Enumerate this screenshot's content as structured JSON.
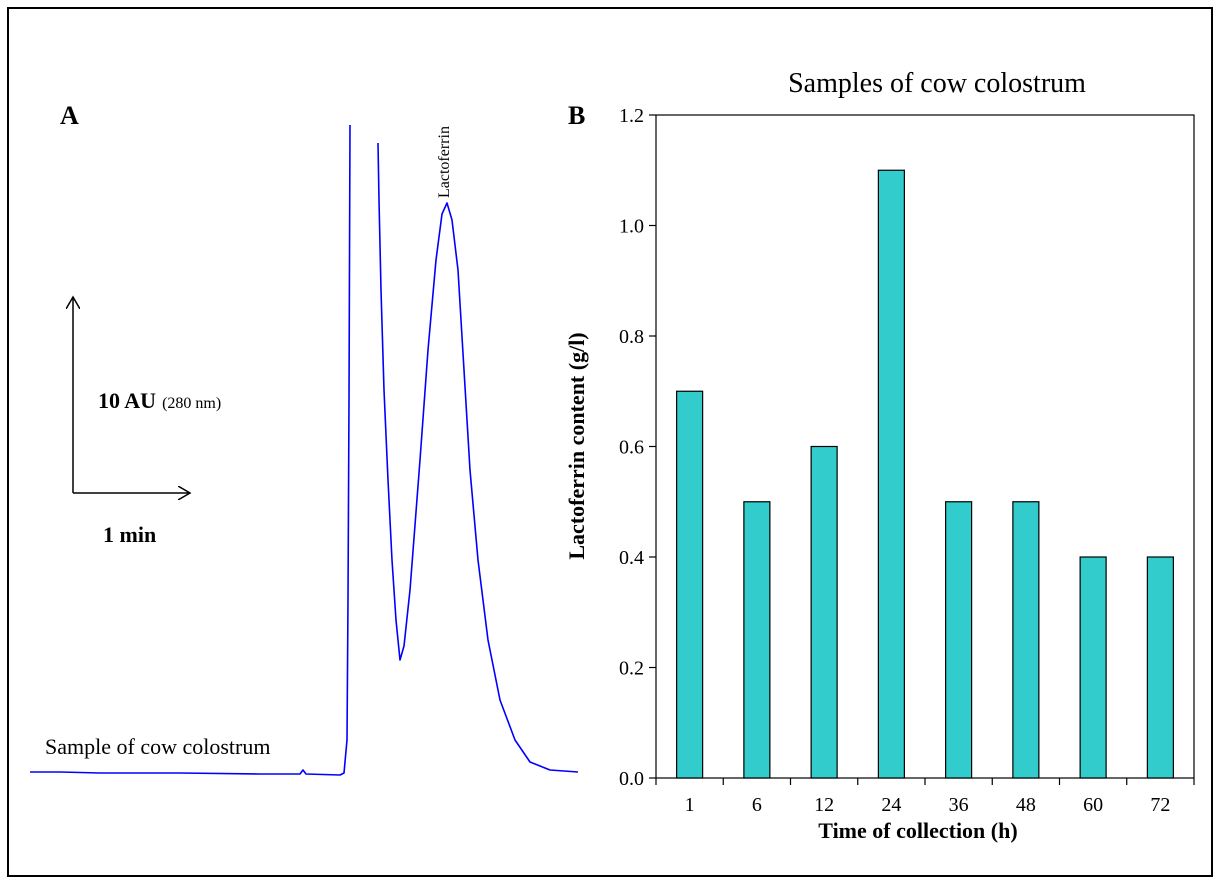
{
  "colors": {
    "trace": "#0000ff",
    "bar_fill": "#33cccc",
    "bar_stroke": "#000000",
    "axis": "#000000"
  },
  "panel_a": {
    "label": "A",
    "peak_label": "Lactoferrin",
    "sample_label": "Sample of cow colostrum",
    "scale_y_bold": "10 AU",
    "scale_y_note": "(280 nm)",
    "scale_x_label": "1 min"
  },
  "chart_data": {
    "type": "bar",
    "panel_label": "B",
    "title": "Samples of cow colostrum",
    "xlabel": "Time of collection (h)",
    "ylabel": "Lactoferrin content (g/l)",
    "categories": [
      "1",
      "6",
      "12",
      "24",
      "36",
      "48",
      "60",
      "72"
    ],
    "values": [
      0.7,
      0.5,
      0.6,
      1.1,
      0.5,
      0.5,
      0.4,
      0.4
    ],
    "ylim": [
      0,
      1.2
    ],
    "yticks": [
      "0.0",
      "0.2",
      "0.4",
      "0.6",
      "0.8",
      "1.0",
      "1.2"
    ],
    "grid": false,
    "legend": "none"
  }
}
